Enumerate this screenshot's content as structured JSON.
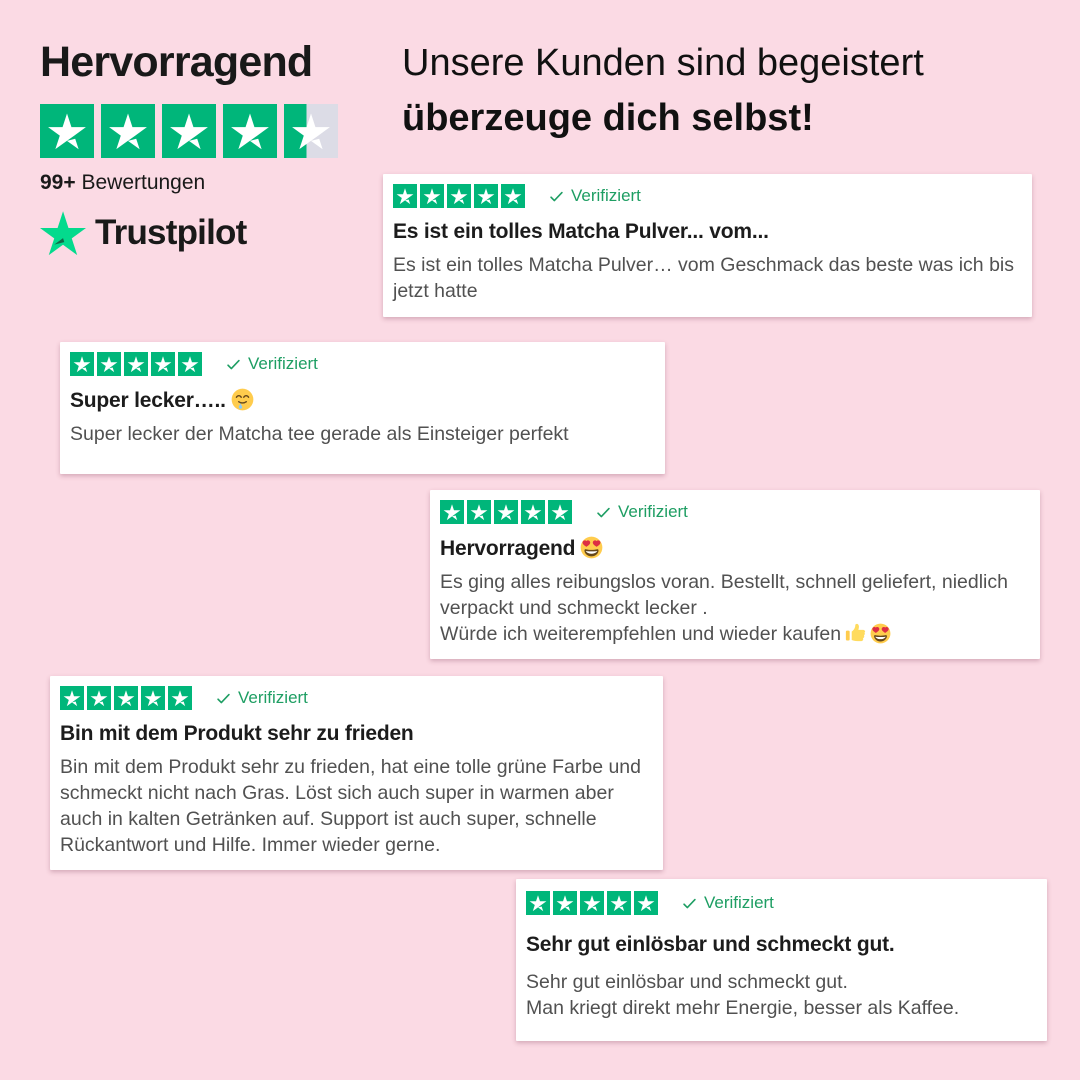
{
  "colors": {
    "background": "#fbdae4",
    "card_bg": "#ffffff",
    "star_green": "#00b67a",
    "star_empty": "#dcdce6",
    "logo_green": "#04da8d",
    "logo_shadow": "#126849",
    "verified_green": "#1e9e63",
    "heading_text": "#191919",
    "title_text": "#1c1c1c",
    "body_text": "#515151"
  },
  "summary": {
    "grade": "Hervorragend",
    "stars": 5,
    "last_star_fill_percent": 42,
    "review_count": "99+",
    "review_count_label": "Bewertungen",
    "brand_name": "Trustpilot"
  },
  "headline": {
    "line1": "Unsere Kunden sind begeistert",
    "line2": "überzeuge dich selbst!"
  },
  "reviews": [
    {
      "stars": 5,
      "verified": "Verifiziert",
      "title": "Es ist ein tolles Matcha Pulver... vom...",
      "body": [
        "Es ist ein tolles Matcha Pulver… vom Geschmack das beste was ich bis jetzt hatte"
      ]
    },
    {
      "stars": 5,
      "verified": "Verifiziert",
      "title": "Super lecker…..",
      "title_emoji": "🤤",
      "body": [
        "Super lecker der Matcha tee gerade als Einsteiger perfekt"
      ]
    },
    {
      "stars": 5,
      "verified": "Verifiziert",
      "title": "Hervorragend",
      "title_emoji": "😍",
      "body": [
        "Es ging alles reibungslos voran. Bestellt, schnell geliefert, niedlich verpackt und schmeckt lecker .",
        "Würde ich weiterempfehlen und wieder kaufen"
      ],
      "body_emoji": "👍😍"
    },
    {
      "stars": 5,
      "verified": "Verifiziert",
      "title": "Bin mit dem Produkt sehr zu frieden",
      "body": [
        "Bin mit dem Produkt sehr zu frieden, hat eine tolle grüne Farbe und schmeckt nicht nach Gras. Löst sich auch super in warmen aber auch in kalten Getränken auf. Support ist auch super, schnelle Rückantwort und Hilfe. Immer wieder gerne."
      ]
    },
    {
      "stars": 5,
      "verified": "Verifiziert",
      "title": "Sehr gut einlösbar und schmeckt gut.",
      "body": [
        "Sehr gut einlösbar und schmeckt gut.",
        "Man kriegt direkt mehr Energie, besser als Kaffee."
      ]
    }
  ]
}
